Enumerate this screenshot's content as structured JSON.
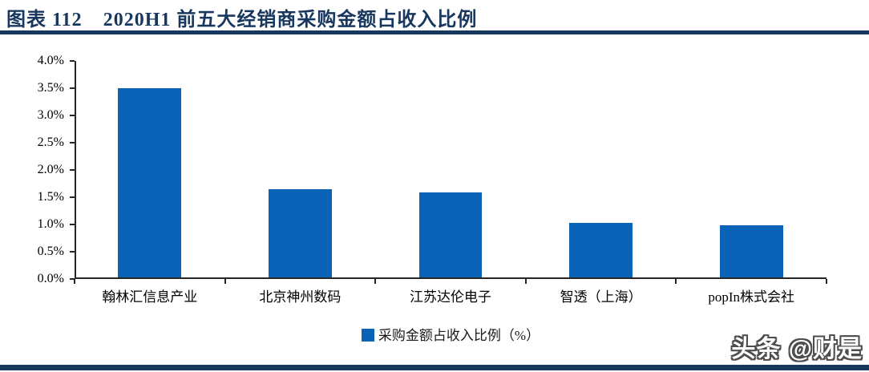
{
  "header": {
    "title_prefix": "图表  112",
    "title_text": "2020H1 前五大经销商采购金额占收入比例"
  },
  "colors": {
    "navy": "#17375E",
    "bar_blue": "#0B63B8",
    "axis": "#262626"
  },
  "chart_data": {
    "type": "bar",
    "title": "2020H1 前五大经销商采购金额占收入比例",
    "categories": [
      "翰林汇信息产业",
      "北京神州数码",
      "江苏达伦电子",
      "智透（上海）",
      "popIn株式会社"
    ],
    "values": [
      3.47,
      1.62,
      1.56,
      1.0,
      0.96
    ],
    "unit": "%",
    "xlabel": "",
    "ylabel": "",
    "ylim": [
      0,
      4.0
    ],
    "ytick_step": 0.5,
    "ytick_labels": [
      "0.0%",
      "0.5%",
      "1.0%",
      "1.5%",
      "2.0%",
      "2.5%",
      "3.0%",
      "3.5%",
      "4.0%"
    ],
    "grid": false,
    "legend_position": "bottom",
    "legend": [
      "采购金额占收入比例（%）"
    ]
  },
  "watermark": {
    "text": "头条 @财是"
  }
}
